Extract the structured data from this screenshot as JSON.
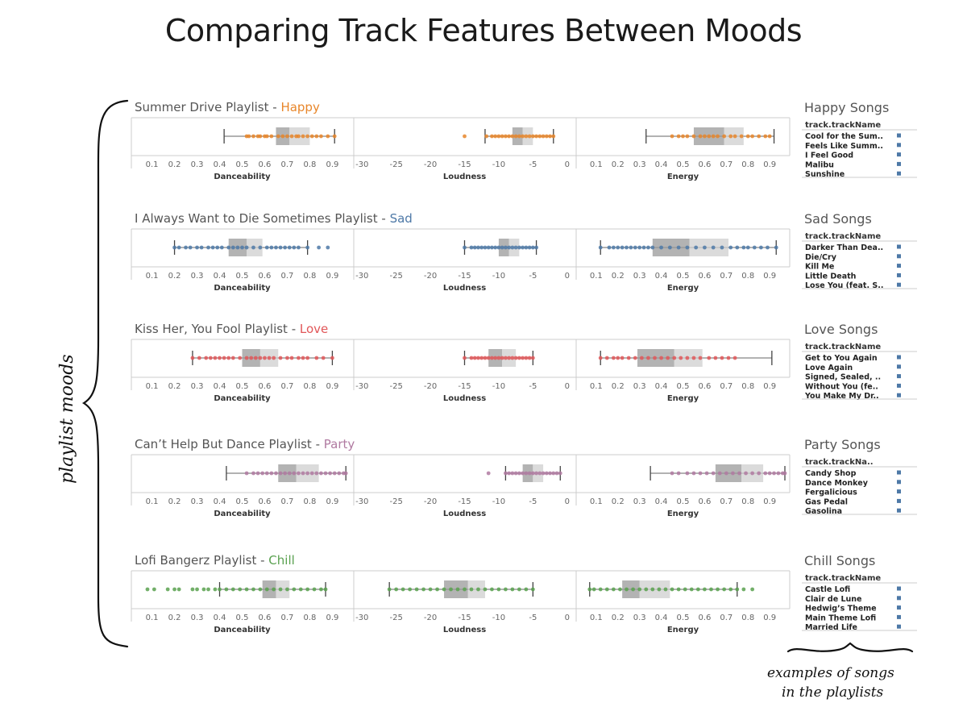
{
  "title": "Comparing Track Features Between Moods",
  "side_annotation": "playlist moods",
  "bottom_annotation": [
    "examples of songs",
    "in the playlists"
  ],
  "song_column_header": "track.trackName",
  "chart_data": {
    "type": "box-and-dot",
    "axes": [
      {
        "label": "Danceability",
        "ticks": [
          0.1,
          0.2,
          0.3,
          0.4,
          0.5,
          0.6,
          0.7,
          0.8,
          0.9
        ],
        "range": [
          0.03,
          0.97
        ]
      },
      {
        "label": "Loudness",
        "ticks": [
          -30,
          -25,
          -20,
          -15,
          -10,
          -5,
          0
        ],
        "range": [
          -30.5,
          0.5
        ]
      },
      {
        "label": "Energy",
        "ticks": [
          0.1,
          0.2,
          0.3,
          0.4,
          0.5,
          0.6,
          0.7,
          0.8,
          0.9
        ],
        "range": [
          0.03,
          0.97
        ]
      }
    ],
    "playlists": [
      {
        "name": "Summer Drive Playlist - ",
        "mood": "Happy",
        "color": "#e8862a",
        "songs_title": "Happy Songs",
        "songs_header": "track.trackName",
        "songs": [
          "Cool for the Sum..",
          "Feels Like Summ..",
          "I Feel Good",
          "Malibu",
          "Sunshine"
        ],
        "features": [
          {
            "min": 0.42,
            "q1": 0.65,
            "median": 0.71,
            "q3": 0.8,
            "max": 0.91,
            "points": [
              0.52,
              0.53,
              0.55,
              0.57,
              0.58,
              0.6,
              0.61,
              0.63,
              0.66,
              0.68,
              0.7,
              0.72,
              0.74,
              0.75,
              0.77,
              0.79,
              0.81,
              0.83,
              0.85,
              0.88,
              0.91
            ]
          },
          {
            "min": -12,
            "q1": -8,
            "median": -6.5,
            "q3": -5,
            "max": -2,
            "points": [
              -15,
              -11.8,
              -11,
              -10.5,
              -10,
              -9.5,
              -9,
              -8.5,
              -8,
              -7.5,
              -7,
              -6.5,
              -6,
              -5.5,
              -5,
              -4.5,
              -4,
              -3.5,
              -3,
              -2.5,
              -2
            ]
          },
          {
            "min": 0.33,
            "q1": 0.55,
            "median": 0.69,
            "q3": 0.78,
            "max": 0.92,
            "points": [
              0.45,
              0.48,
              0.5,
              0.52,
              0.55,
              0.58,
              0.6,
              0.62,
              0.64,
              0.66,
              0.69,
              0.72,
              0.74,
              0.77,
              0.8,
              0.82,
              0.85,
              0.88,
              0.9
            ]
          }
        ]
      },
      {
        "name": "I Always Want to Die Sometimes Playlist - ",
        "mood": "Sad",
        "color": "#4e79a7",
        "songs_title": "Sad Songs",
        "songs_header": "track.trackName",
        "songs": [
          "Darker Than Dea..",
          "Die/Cry",
          "Kill Me",
          "Little Death",
          "Lose You (feat. S.."
        ],
        "features": [
          {
            "min": 0.2,
            "q1": 0.44,
            "median": 0.52,
            "q3": 0.59,
            "max": 0.79,
            "points": [
              0.2,
              0.22,
              0.25,
              0.27,
              0.3,
              0.32,
              0.35,
              0.37,
              0.39,
              0.41,
              0.44,
              0.46,
              0.48,
              0.5,
              0.52,
              0.55,
              0.58,
              0.61,
              0.63,
              0.65,
              0.67,
              0.69,
              0.71,
              0.73,
              0.75,
              0.79,
              0.84,
              0.88
            ]
          },
          {
            "min": -15,
            "q1": -10,
            "median": -8.5,
            "q3": -7,
            "max": -4.5,
            "points": [
              -15,
              -14,
              -13.5,
              -13,
              -12.5,
              -12,
              -11.5,
              -11,
              -10.5,
              -10,
              -9.5,
              -9,
              -8.5,
              -8,
              -7.5,
              -7,
              -6.5,
              -6,
              -5.5,
              -5,
              -4.5
            ]
          },
          {
            "min": 0.12,
            "q1": 0.36,
            "median": 0.53,
            "q3": 0.71,
            "max": 0.93,
            "points": [
              0.12,
              0.16,
              0.18,
              0.2,
              0.22,
              0.24,
              0.26,
              0.28,
              0.3,
              0.32,
              0.34,
              0.36,
              0.4,
              0.44,
              0.48,
              0.52,
              0.56,
              0.6,
              0.64,
              0.68,
              0.72,
              0.75,
              0.78,
              0.8,
              0.83,
              0.86,
              0.89,
              0.93
            ]
          }
        ]
      },
      {
        "name": "Kiss Her, You Fool Playlist - ",
        "mood": "Love",
        "color": "#e15759",
        "songs_title": "Love Songs",
        "songs_header": "track.trackName",
        "songs": [
          "Get to You Again",
          "Love Again",
          "Signed, Sealed, ..",
          "Without You (fe..",
          "You Make My Dr.."
        ],
        "features": [
          {
            "min": 0.28,
            "q1": 0.5,
            "median": 0.58,
            "q3": 0.66,
            "max": 0.9,
            "points": [
              0.28,
              0.31,
              0.34,
              0.36,
              0.38,
              0.4,
              0.42,
              0.44,
              0.46,
              0.49,
              0.52,
              0.54,
              0.56,
              0.58,
              0.6,
              0.62,
              0.64,
              0.67,
              0.7,
              0.72,
              0.75,
              0.77,
              0.79,
              0.83,
              0.86,
              0.9
            ]
          },
          {
            "min": -15,
            "q1": -11.5,
            "median": -9.5,
            "q3": -7.5,
            "max": -5,
            "points": [
              -15,
              -14,
              -13.5,
              -13,
              -12.5,
              -12,
              -11.5,
              -11,
              -10.5,
              -10,
              -9.5,
              -9,
              -8.5,
              -8,
              -7.5,
              -7,
              -6.5,
              -6,
              -5.5,
              -5
            ]
          },
          {
            "min": 0.12,
            "q1": 0.29,
            "median": 0.46,
            "q3": 0.59,
            "max": 0.91,
            "points": [
              0.12,
              0.15,
              0.18,
              0.2,
              0.22,
              0.25,
              0.28,
              0.31,
              0.34,
              0.37,
              0.4,
              0.43,
              0.46,
              0.49,
              0.52,
              0.55,
              0.58,
              0.62,
              0.65,
              0.68,
              0.71,
              0.74
            ]
          }
        ]
      },
      {
        "name": "Can’t Help But Dance Playlist - ",
        "mood": "Party",
        "color": "#b07aa1",
        "songs_title": "Party Songs",
        "songs_header": "track.trackNa..",
        "songs": [
          "Candy Shop",
          "Dance Monkey",
          "Fergalicious",
          "Gas Pedal",
          "Gasolina"
        ],
        "features": [
          {
            "min": 0.43,
            "q1": 0.66,
            "median": 0.74,
            "q3": 0.84,
            "max": 0.96,
            "points": [
              0.52,
              0.55,
              0.57,
              0.59,
              0.61,
              0.63,
              0.65,
              0.67,
              0.69,
              0.71,
              0.73,
              0.75,
              0.77,
              0.79,
              0.81,
              0.83,
              0.85,
              0.87,
              0.89,
              0.91,
              0.93,
              0.95,
              0.96
            ]
          },
          {
            "min": -9,
            "q1": -6.5,
            "median": -5,
            "q3": -3.5,
            "max": -1,
            "points": [
              -11.5,
              -9,
              -8.5,
              -8,
              -7.5,
              -7,
              -6.5,
              -6,
              -5.5,
              -5,
              -4.5,
              -4,
              -3.5,
              -3,
              -2.5,
              -2,
              -1.5,
              -1
            ]
          },
          {
            "min": 0.35,
            "q1": 0.65,
            "median": 0.77,
            "q3": 0.87,
            "max": 0.97,
            "points": [
              0.45,
              0.48,
              0.52,
              0.55,
              0.58,
              0.61,
              0.64,
              0.67,
              0.7,
              0.73,
              0.76,
              0.79,
              0.82,
              0.85,
              0.88,
              0.9,
              0.92,
              0.94,
              0.96,
              0.97
            ]
          }
        ]
      },
      {
        "name": "Lofi Bangerz Playlist - ",
        "mood": "Chill",
        "color": "#59a14f",
        "songs_title": "Chill Songs",
        "songs_header": "track.trackName",
        "songs": [
          "Castle Lofi",
          "Clair de Lune",
          "Hedwig’s Theme",
          "Main Theme Lofi",
          "Married Life"
        ],
        "features": [
          {
            "min": 0.4,
            "q1": 0.59,
            "median": 0.65,
            "q3": 0.71,
            "max": 0.87,
            "points": [
              0.08,
              0.11,
              0.17,
              0.2,
              0.22,
              0.28,
              0.3,
              0.33,
              0.35,
              0.38,
              0.4,
              0.43,
              0.46,
              0.49,
              0.52,
              0.55,
              0.58,
              0.61,
              0.64,
              0.67,
              0.7,
              0.73,
              0.76,
              0.79,
              0.82,
              0.85,
              0.87
            ]
          },
          {
            "min": -26,
            "q1": -18,
            "median": -14.5,
            "q3": -12,
            "max": -5,
            "points": [
              -26,
              -25,
              -24,
              -23,
              -22,
              -21,
              -20,
              -19,
              -18,
              -17,
              -16,
              -15,
              -14,
              -13,
              -12,
              -11,
              -10,
              -9,
              -8,
              -7,
              -6,
              -5
            ]
          },
          {
            "min": 0.07,
            "q1": 0.22,
            "median": 0.3,
            "q3": 0.44,
            "max": 0.75,
            "points": [
              0.07,
              0.09,
              0.12,
              0.15,
              0.18,
              0.21,
              0.24,
              0.27,
              0.3,
              0.33,
              0.36,
              0.39,
              0.42,
              0.45,
              0.48,
              0.51,
              0.54,
              0.57,
              0.6,
              0.63,
              0.66,
              0.69,
              0.72,
              0.75,
              0.78,
              0.82
            ]
          }
        ]
      }
    ]
  }
}
